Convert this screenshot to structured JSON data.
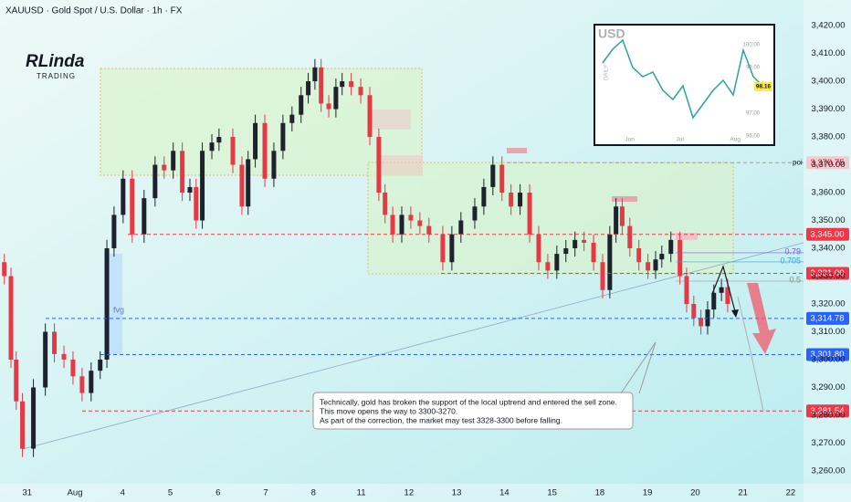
{
  "logo": {
    "name": "RLinda",
    "tagline": "TRADING"
  },
  "chart_data": [
    {
      "type": "candlestick",
      "title": "XAUUSD · Gold Spot / U.S. Dollar · 1h · FX",
      "x": [
        -0.48,
        -0.34,
        -0.23,
        -0.1,
        0.13,
        0.38,
        0.57,
        0.77,
        0.96,
        1.15,
        1.34,
        1.53,
        1.67,
        1.82,
        2.01,
        2.2,
        2.45,
        2.68,
        2.87,
        3.06,
        3.25,
        3.41,
        3.54,
        3.67,
        3.87,
        4.02,
        4.31,
        4.5,
        4.63,
        4.78,
        4.98,
        5.17,
        5.36,
        5.55,
        5.74,
        5.89,
        6.03,
        6.16,
        6.32,
        6.47,
        6.6,
        6.79,
        6.99,
        7.18,
        7.37,
        7.5,
        7.66,
        7.85,
        8.04,
        8.23,
        8.42,
        8.71,
        8.9,
        9.09,
        9.38,
        9.57,
        9.76,
        9.95,
        10.14,
        10.33,
        10.53,
        10.72,
        10.91,
        11.1,
        11.29,
        11.48,
        11.67,
        11.87,
        12.06,
        12.21,
        12.34,
        12.47,
        12.63,
        12.82,
        13.01,
        13.17,
        13.3,
        13.49,
        13.68,
        13.82,
        13.97,
        14.12,
        14.26,
        14.39,
        14.55,
        14.68
      ],
      "open": [
        3335,
        3330,
        3300,
        3285,
        3268,
        3290,
        3310,
        3302,
        3300,
        3294,
        3288,
        3296,
        3300,
        3340,
        3352,
        3365,
        3345,
        3358,
        3370,
        3368,
        3375,
        3360,
        3362,
        3350,
        3375,
        3378,
        3380,
        3370,
        3355,
        3372,
        3385,
        3365,
        3375,
        3385,
        3388,
        3395,
        3400,
        3405,
        3392,
        3390,
        3398,
        3400,
        3398,
        3395,
        3380,
        3360,
        3352,
        3345,
        3352,
        3350,
        3348,
        3345,
        3335,
        3345,
        3350,
        3355,
        3362,
        3370,
        3360,
        3355,
        3360,
        3345,
        3335,
        3332,
        3338,
        3340,
        3343,
        3342,
        3335,
        3325,
        3345,
        3355,
        3348,
        3340,
        3335,
        3332,
        3336,
        3338,
        3343,
        3330,
        3320,
        3315,
        3312,
        3318,
        3324,
        3326
      ],
      "high": [
        3338,
        3333,
        3303,
        3288,
        3293,
        3313,
        3313,
        3305,
        3303,
        3297,
        3299,
        3303,
        3343,
        3355,
        3368,
        3368,
        3361,
        3373,
        3373,
        3378,
        3378,
        3365,
        3365,
        3378,
        3381,
        3383,
        3383,
        3373,
        3375,
        3388,
        3388,
        3378,
        3388,
        3391,
        3398,
        3403,
        3408,
        3408,
        3395,
        3401,
        3403,
        3403,
        3401,
        3398,
        3383,
        3363,
        3355,
        3355,
        3355,
        3353,
        3351,
        3348,
        3348,
        3353,
        3358,
        3365,
        3373,
        3373,
        3363,
        3363,
        3363,
        3348,
        3338,
        3341,
        3343,
        3346,
        3346,
        3345,
        3338,
        3348,
        3358,
        3358,
        3351,
        3343,
        3338,
        3339,
        3341,
        3346,
        3346,
        3333,
        3323,
        3318,
        3321,
        3327,
        3329,
        3329
      ],
      "low": [
        3327,
        3297,
        3282,
        3265,
        3265,
        3287,
        3299,
        3297,
        3291,
        3285,
        3285,
        3293,
        3297,
        3337,
        3349,
        3342,
        3342,
        3355,
        3365,
        3365,
        3357,
        3357,
        3347,
        3347,
        3372,
        3375,
        3367,
        3352,
        3352,
        3369,
        3362,
        3362,
        3372,
        3382,
        3385,
        3392,
        3397,
        3389,
        3387,
        3387,
        3395,
        3395,
        3392,
        3377,
        3357,
        3349,
        3342,
        3342,
        3347,
        3345,
        3342,
        3332,
        3332,
        3342,
        3347,
        3352,
        3359,
        3357,
        3352,
        3352,
        3342,
        3332,
        3329,
        3329,
        3335,
        3337,
        3339,
        3332,
        3322,
        3322,
        3342,
        3345,
        3337,
        3332,
        3329,
        3329,
        3333,
        3335,
        3327,
        3317,
        3312,
        3309,
        3309,
        3315,
        3321,
        3317
      ],
      "close": [
        3330,
        3300,
        3285,
        3268,
        3290,
        3310,
        3302,
        3300,
        3294,
        3288,
        3296,
        3300,
        3340,
        3352,
        3365,
        3345,
        3358,
        3370,
        3368,
        3375,
        3360,
        3362,
        3350,
        3375,
        3378,
        3380,
        3370,
        3355,
        3372,
        3385,
        3365,
        3375,
        3385,
        3388,
        3395,
        3400,
        3405,
        3392,
        3390,
        3398,
        3400,
        3398,
        3395,
        3380,
        3360,
        3352,
        3345,
        3352,
        3350,
        3348,
        3345,
        3335,
        3345,
        3350,
        3355,
        3362,
        3370,
        3360,
        3355,
        3360,
        3345,
        3335,
        3332,
        3338,
        3340,
        3343,
        3342,
        3335,
        3325,
        3345,
        3355,
        3348,
        3340,
        3335,
        3332,
        3336,
        3338,
        3343,
        3330,
        3320,
        3315,
        3312,
        3318,
        3324,
        3326,
        3320
      ],
      "up_color": "#1e222d",
      "down_color": "#e53945",
      "xlim": [
        -0.57,
        16.27
      ],
      "xticks": [
        {
          "value": 0,
          "label": "31"
        },
        {
          "value": 1,
          "label": "Aug"
        },
        {
          "value": 2,
          "label": "4"
        },
        {
          "value": 3,
          "label": "5"
        },
        {
          "value": 4,
          "label": "6"
        },
        {
          "value": 5,
          "label": "7"
        },
        {
          "value": 6,
          "label": "8"
        },
        {
          "value": 7,
          "label": "11"
        },
        {
          "value": 8,
          "label": "12"
        },
        {
          "value": 9,
          "label": "13"
        },
        {
          "value": 10,
          "label": "14"
        },
        {
          "value": 11,
          "label": "15"
        },
        {
          "value": 12,
          "label": "18"
        },
        {
          "value": 13,
          "label": "19"
        },
        {
          "value": 14,
          "label": "20"
        },
        {
          "value": 15,
          "label": "21"
        },
        {
          "value": 16,
          "label": "22"
        }
      ],
      "ylim": [
        3255.4,
        3429.2
      ],
      "yticks": [
        {
          "value": 3260,
          "label": "3,260.00"
        },
        {
          "value": 3270,
          "label": "3,270.00"
        },
        {
          "value": 3280,
          "label": "3,280.00"
        },
        {
          "value": 3290,
          "label": "3,290.00"
        },
        {
          "value": 3300,
          "label": "3,300.00"
        },
        {
          "value": 3310,
          "label": "3,310.00"
        },
        {
          "value": 3320,
          "label": "3,320.00"
        },
        {
          "value": 3330,
          "label": "3,330.00"
        },
        {
          "value": 3340,
          "label": "3,340.00"
        },
        {
          "value": 3350,
          "label": "3,350.00"
        },
        {
          "value": 3360,
          "label": "3,360.00"
        },
        {
          "value": 3370,
          "label": "3,370.00"
        },
        {
          "value": 3380,
          "label": "3,380.00"
        },
        {
          "value": 3390,
          "label": "3,390.00"
        },
        {
          "value": 3400,
          "label": "3,400.00"
        },
        {
          "value": 3410,
          "label": "3,410.00"
        },
        {
          "value": 3420,
          "label": "3,420.00"
        }
      ],
      "grid": false,
      "levels": [
        {
          "value": 3370.75,
          "label": "3,370.75",
          "tag": "poi",
          "color": "#9e9e9e",
          "tag_color": "#f7c9d0",
          "text_color": "#b71c2c"
        },
        {
          "value": 3345,
          "label": "3,345.00",
          "color": "#f23645",
          "tag_color": "#f23645",
          "text_color": "#ffffff"
        },
        {
          "value": 3331,
          "label": "3,331.00",
          "color": "#f23645",
          "tag_color": "#f23645",
          "text_color": "#ffffff"
        },
        {
          "value": 3314.78,
          "label": "3,314.78",
          "color": "#2962ff",
          "tag_color": "#2962ff",
          "text_color": "#ffffff"
        },
        {
          "value": 3301.8,
          "label": "3,301.80",
          "color": "#2962ff",
          "tag_color": "#2962ff",
          "text_color": "#ffffff"
        },
        {
          "value": 3281.54,
          "label": "3,281.54",
          "color": "#f23645",
          "tag_color": "#f23645",
          "text_color": "#ffffff"
        }
      ],
      "fib": [
        {
          "level": 0.79,
          "price": 3338.4,
          "color": "#7b5cd6"
        },
        {
          "level": 0.705,
          "price": 3335.1,
          "color": "#3aa8d8"
        },
        {
          "level": 0.5,
          "price": 3328.2,
          "color": "#8a8a8a"
        }
      ],
      "fvg_label": "fvg",
      "annotation": [
        "Technically, gold has broken the support of the local uptrend and entered the sell zone.",
        "This move opens the way to 3300-3270.",
        "As part of the correction, the market may test 3328-3300 before falling."
      ]
    },
    {
      "type": "line",
      "title": "USD",
      "subtitle": "DAILY",
      "values": [
        99.2,
        99.8,
        100.2,
        99.0,
        98.6,
        98.8,
        98.0,
        97.6,
        98.2,
        96.8,
        97.4,
        98.0,
        98.44,
        97.8,
        99.76,
        98.6,
        98.16
      ],
      "color": "#26a69a",
      "xlim": [
        -0.45,
        16.82
      ],
      "xticks": [
        {
          "value": 2.7,
          "label": "Jun"
        },
        {
          "value": 7.7,
          "label": "Jul"
        },
        {
          "value": 13.2,
          "label": "Aug"
        }
      ],
      "ylim": [
        95.76,
        100.76
      ],
      "yticks": [
        {
          "value": 100,
          "label": "100.00"
        },
        {
          "value": 99,
          "label": "99.00"
        },
        {
          "value": 97,
          "label": "97.00"
        },
        {
          "value": 96,
          "label": "96.00"
        }
      ],
      "last": {
        "value": 98.16,
        "label": "98.16",
        "color": "#ffeb3b"
      }
    }
  ]
}
